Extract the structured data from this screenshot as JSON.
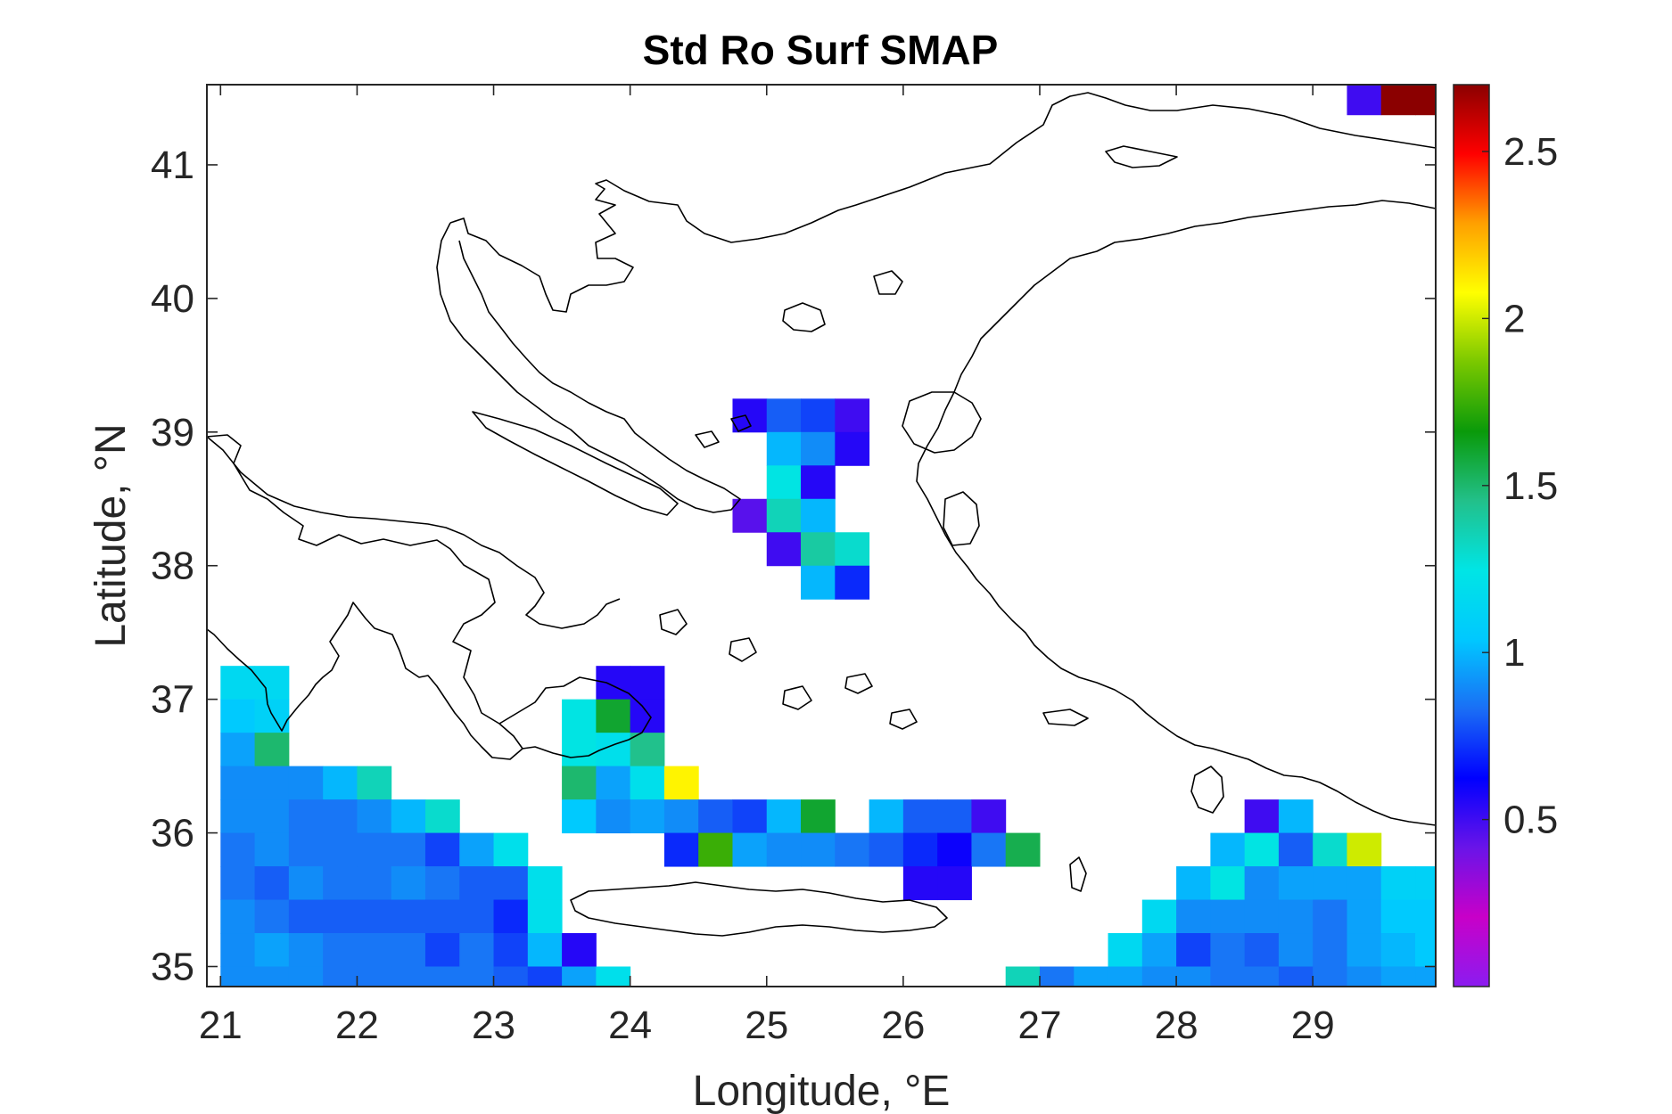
{
  "chart_data": {
    "type": "heatmap",
    "title": "Std Ro Surf SMAP",
    "xlabel": "Longitude, °E",
    "ylabel": "Latitude, °N",
    "xlim": [
      20.9,
      29.9
    ],
    "ylim": [
      34.85,
      41.6
    ],
    "xticks": [
      21,
      22,
      23,
      24,
      25,
      26,
      27,
      28,
      29
    ],
    "yticks": [
      35,
      36,
      37,
      38,
      39,
      40,
      41
    ],
    "colorbar": {
      "range": [
        0.0,
        2.7
      ],
      "ticks": [
        0.5,
        1,
        1.5,
        2,
        2.5
      ],
      "colormap": "custom-rainbow",
      "colors": [
        "#8b1cf0",
        "#c800c8",
        "#6a14e8",
        "#0000ff",
        "#1a6ef5",
        "#00c8ff",
        "#00e5e5",
        "#22c08a",
        "#0a9a0a",
        "#7ac800",
        "#ffff00",
        "#ffa000",
        "#ff0000",
        "#8b0000"
      ]
    },
    "grid_step": 0.25,
    "grid_note": "cells given as [lon_center, lat_center, value]",
    "cells": [
      [
        29.375,
        41.5,
        0.5
      ],
      [
        29.625,
        41.5,
        2.7
      ],
      [
        29.875,
        41.5,
        2.7
      ],
      [
        24.875,
        39.125,
        0.55
      ],
      [
        25.125,
        39.125,
        0.8
      ],
      [
        25.375,
        39.125,
        0.75
      ],
      [
        25.625,
        39.125,
        0.5
      ],
      [
        25.125,
        38.875,
        1.0
      ],
      [
        25.375,
        38.875,
        0.9
      ],
      [
        25.625,
        38.875,
        0.55
      ],
      [
        25.125,
        38.625,
        1.25
      ],
      [
        25.375,
        38.625,
        0.55
      ],
      [
        24.875,
        38.375,
        0.45
      ],
      [
        25.125,
        38.375,
        1.35
      ],
      [
        25.375,
        38.375,
        1.0
      ],
      [
        25.125,
        38.125,
        0.5
      ],
      [
        25.375,
        38.125,
        1.4
      ],
      [
        25.625,
        38.125,
        1.3
      ],
      [
        25.375,
        37.875,
        1.0
      ],
      [
        25.625,
        37.875,
        0.7
      ],
      [
        23.875,
        37.125,
        0.55
      ],
      [
        24.125,
        37.125,
        0.55
      ],
      [
        23.625,
        36.875,
        1.25
      ],
      [
        23.875,
        36.875,
        1.6
      ],
      [
        24.125,
        36.875,
        0.55
      ],
      [
        23.625,
        36.625,
        1.25
      ],
      [
        23.875,
        36.625,
        1.2
      ],
      [
        24.125,
        36.625,
        1.45
      ],
      [
        23.625,
        36.375,
        1.5
      ],
      [
        23.875,
        36.375,
        0.95
      ],
      [
        24.125,
        36.375,
        1.2
      ],
      [
        24.375,
        36.375,
        2.1
      ],
      [
        23.625,
        36.125,
        1.05
      ],
      [
        23.875,
        36.125,
        0.9
      ],
      [
        24.125,
        36.125,
        0.95
      ],
      [
        24.375,
        36.125,
        0.9
      ],
      [
        24.625,
        36.125,
        0.8
      ],
      [
        24.875,
        36.125,
        0.75
      ],
      [
        25.125,
        36.125,
        1.0
      ],
      [
        25.375,
        36.125,
        1.6
      ],
      [
        25.875,
        36.125,
        1.0
      ],
      [
        26.125,
        36.125,
        0.8
      ],
      [
        26.375,
        36.125,
        0.8
      ],
      [
        26.625,
        36.125,
        0.5
      ],
      [
        24.375,
        35.875,
        0.7
      ],
      [
        24.625,
        35.875,
        1.75
      ],
      [
        24.875,
        35.875,
        0.95
      ],
      [
        25.125,
        35.875,
        0.9
      ],
      [
        25.375,
        35.875,
        0.9
      ],
      [
        25.625,
        35.875,
        0.85
      ],
      [
        25.875,
        35.875,
        0.8
      ],
      [
        26.125,
        35.875,
        0.7
      ],
      [
        26.375,
        35.875,
        0.6
      ],
      [
        26.625,
        35.875,
        0.85
      ],
      [
        26.875,
        35.875,
        1.55
      ],
      [
        26.125,
        35.625,
        0.55
      ],
      [
        26.375,
        35.625,
        0.55
      ],
      [
        21.125,
        37.125,
        1.15
      ],
      [
        21.375,
        37.125,
        1.15
      ],
      [
        21.125,
        36.875,
        1.05
      ],
      [
        21.375,
        36.875,
        1.1
      ],
      [
        21.125,
        36.625,
        0.95
      ],
      [
        21.375,
        36.625,
        1.5
      ],
      [
        21.125,
        36.375,
        0.9
      ],
      [
        21.375,
        36.375,
        0.9
      ],
      [
        21.625,
        36.375,
        0.9
      ],
      [
        21.875,
        36.375,
        1.0
      ],
      [
        22.125,
        36.375,
        1.35
      ],
      [
        21.125,
        36.125,
        0.9
      ],
      [
        21.375,
        36.125,
        0.9
      ],
      [
        21.625,
        36.125,
        0.85
      ],
      [
        21.875,
        36.125,
        0.85
      ],
      [
        22.125,
        36.125,
        0.9
      ],
      [
        22.375,
        36.125,
        1.0
      ],
      [
        22.625,
        36.125,
        1.3
      ],
      [
        21.125,
        35.875,
        0.85
      ],
      [
        21.375,
        35.875,
        0.9
      ],
      [
        21.625,
        35.875,
        0.85
      ],
      [
        21.875,
        35.875,
        0.85
      ],
      [
        22.125,
        35.875,
        0.85
      ],
      [
        22.375,
        35.875,
        0.85
      ],
      [
        22.625,
        35.875,
        0.75
      ],
      [
        22.875,
        35.875,
        0.95
      ],
      [
        23.125,
        35.875,
        1.2
      ],
      [
        21.125,
        35.625,
        0.85
      ],
      [
        21.375,
        35.625,
        0.8
      ],
      [
        21.625,
        35.625,
        0.9
      ],
      [
        21.875,
        35.625,
        0.85
      ],
      [
        22.125,
        35.625,
        0.85
      ],
      [
        22.375,
        35.625,
        0.9
      ],
      [
        22.625,
        35.625,
        0.85
      ],
      [
        22.875,
        35.625,
        0.8
      ],
      [
        23.125,
        35.625,
        0.8
      ],
      [
        23.375,
        35.625,
        1.2
      ],
      [
        21.125,
        35.375,
        0.9
      ],
      [
        21.375,
        35.375,
        0.85
      ],
      [
        21.625,
        35.375,
        0.8
      ],
      [
        21.875,
        35.375,
        0.8
      ],
      [
        22.125,
        35.375,
        0.8
      ],
      [
        22.375,
        35.375,
        0.8
      ],
      [
        22.625,
        35.375,
        0.8
      ],
      [
        22.875,
        35.375,
        0.8
      ],
      [
        23.125,
        35.375,
        0.7
      ],
      [
        23.375,
        35.375,
        1.2
      ],
      [
        21.125,
        35.125,
        0.9
      ],
      [
        21.375,
        35.125,
        0.95
      ],
      [
        21.625,
        35.125,
        0.9
      ],
      [
        21.875,
        35.125,
        0.85
      ],
      [
        22.125,
        35.125,
        0.85
      ],
      [
        22.375,
        35.125,
        0.85
      ],
      [
        22.625,
        35.125,
        0.75
      ],
      [
        22.875,
        35.125,
        0.85
      ],
      [
        23.125,
        35.125,
        0.75
      ],
      [
        23.375,
        35.125,
        1.0
      ],
      [
        23.625,
        35.125,
        0.55
      ],
      [
        21.125,
        34.875,
        0.9
      ],
      [
        21.375,
        34.875,
        0.9
      ],
      [
        21.625,
        34.875,
        0.9
      ],
      [
        21.875,
        34.875,
        0.85
      ],
      [
        22.125,
        34.875,
        0.85
      ],
      [
        22.375,
        34.875,
        0.85
      ],
      [
        22.625,
        34.875,
        0.85
      ],
      [
        22.875,
        34.875,
        0.85
      ],
      [
        23.125,
        34.875,
        0.8
      ],
      [
        23.375,
        34.875,
        0.75
      ],
      [
        23.625,
        34.875,
        0.95
      ],
      [
        23.875,
        34.875,
        1.2
      ],
      [
        28.625,
        36.125,
        0.5
      ],
      [
        28.875,
        36.125,
        1.0
      ],
      [
        28.375,
        35.875,
        1.0
      ],
      [
        28.625,
        35.875,
        1.25
      ],
      [
        28.875,
        35.875,
        0.8
      ],
      [
        29.125,
        35.875,
        1.3
      ],
      [
        29.375,
        35.875,
        2.0
      ],
      [
        28.125,
        35.625,
        1.0
      ],
      [
        28.375,
        35.625,
        1.25
      ],
      [
        28.625,
        35.625,
        0.9
      ],
      [
        28.875,
        35.625,
        0.95
      ],
      [
        29.125,
        35.625,
        0.95
      ],
      [
        29.375,
        35.625,
        0.95
      ],
      [
        29.625,
        35.625,
        1.1
      ],
      [
        29.875,
        35.625,
        1.1
      ],
      [
        27.875,
        35.375,
        1.15
      ],
      [
        28.125,
        35.375,
        0.9
      ],
      [
        28.375,
        35.375,
        0.9
      ],
      [
        28.625,
        35.375,
        0.9
      ],
      [
        28.875,
        35.375,
        0.9
      ],
      [
        29.125,
        35.375,
        0.85
      ],
      [
        29.375,
        35.375,
        0.95
      ],
      [
        29.625,
        35.375,
        1.05
      ],
      [
        29.875,
        35.375,
        1.05
      ],
      [
        27.625,
        35.125,
        1.15
      ],
      [
        27.875,
        35.125,
        0.95
      ],
      [
        28.125,
        35.125,
        0.75
      ],
      [
        28.375,
        35.125,
        0.85
      ],
      [
        28.625,
        35.125,
        0.8
      ],
      [
        28.875,
        35.125,
        0.9
      ],
      [
        29.125,
        35.125,
        0.85
      ],
      [
        29.375,
        35.125,
        0.95
      ],
      [
        29.625,
        35.125,
        1.0
      ],
      [
        29.875,
        35.125,
        1.05
      ],
      [
        26.875,
        34.875,
        1.35
      ],
      [
        27.125,
        34.875,
        0.85
      ],
      [
        27.375,
        34.875,
        0.95
      ],
      [
        27.625,
        34.875,
        0.95
      ],
      [
        27.875,
        34.875,
        0.9
      ],
      [
        28.125,
        34.875,
        0.9
      ],
      [
        28.375,
        34.875,
        0.85
      ],
      [
        28.625,
        34.875,
        0.85
      ],
      [
        28.875,
        34.875,
        0.8
      ],
      [
        29.125,
        34.875,
        0.85
      ],
      [
        29.375,
        34.875,
        0.9
      ],
      [
        29.625,
        34.875,
        0.95
      ],
      [
        29.875,
        34.875,
        0.95
      ]
    ]
  }
}
